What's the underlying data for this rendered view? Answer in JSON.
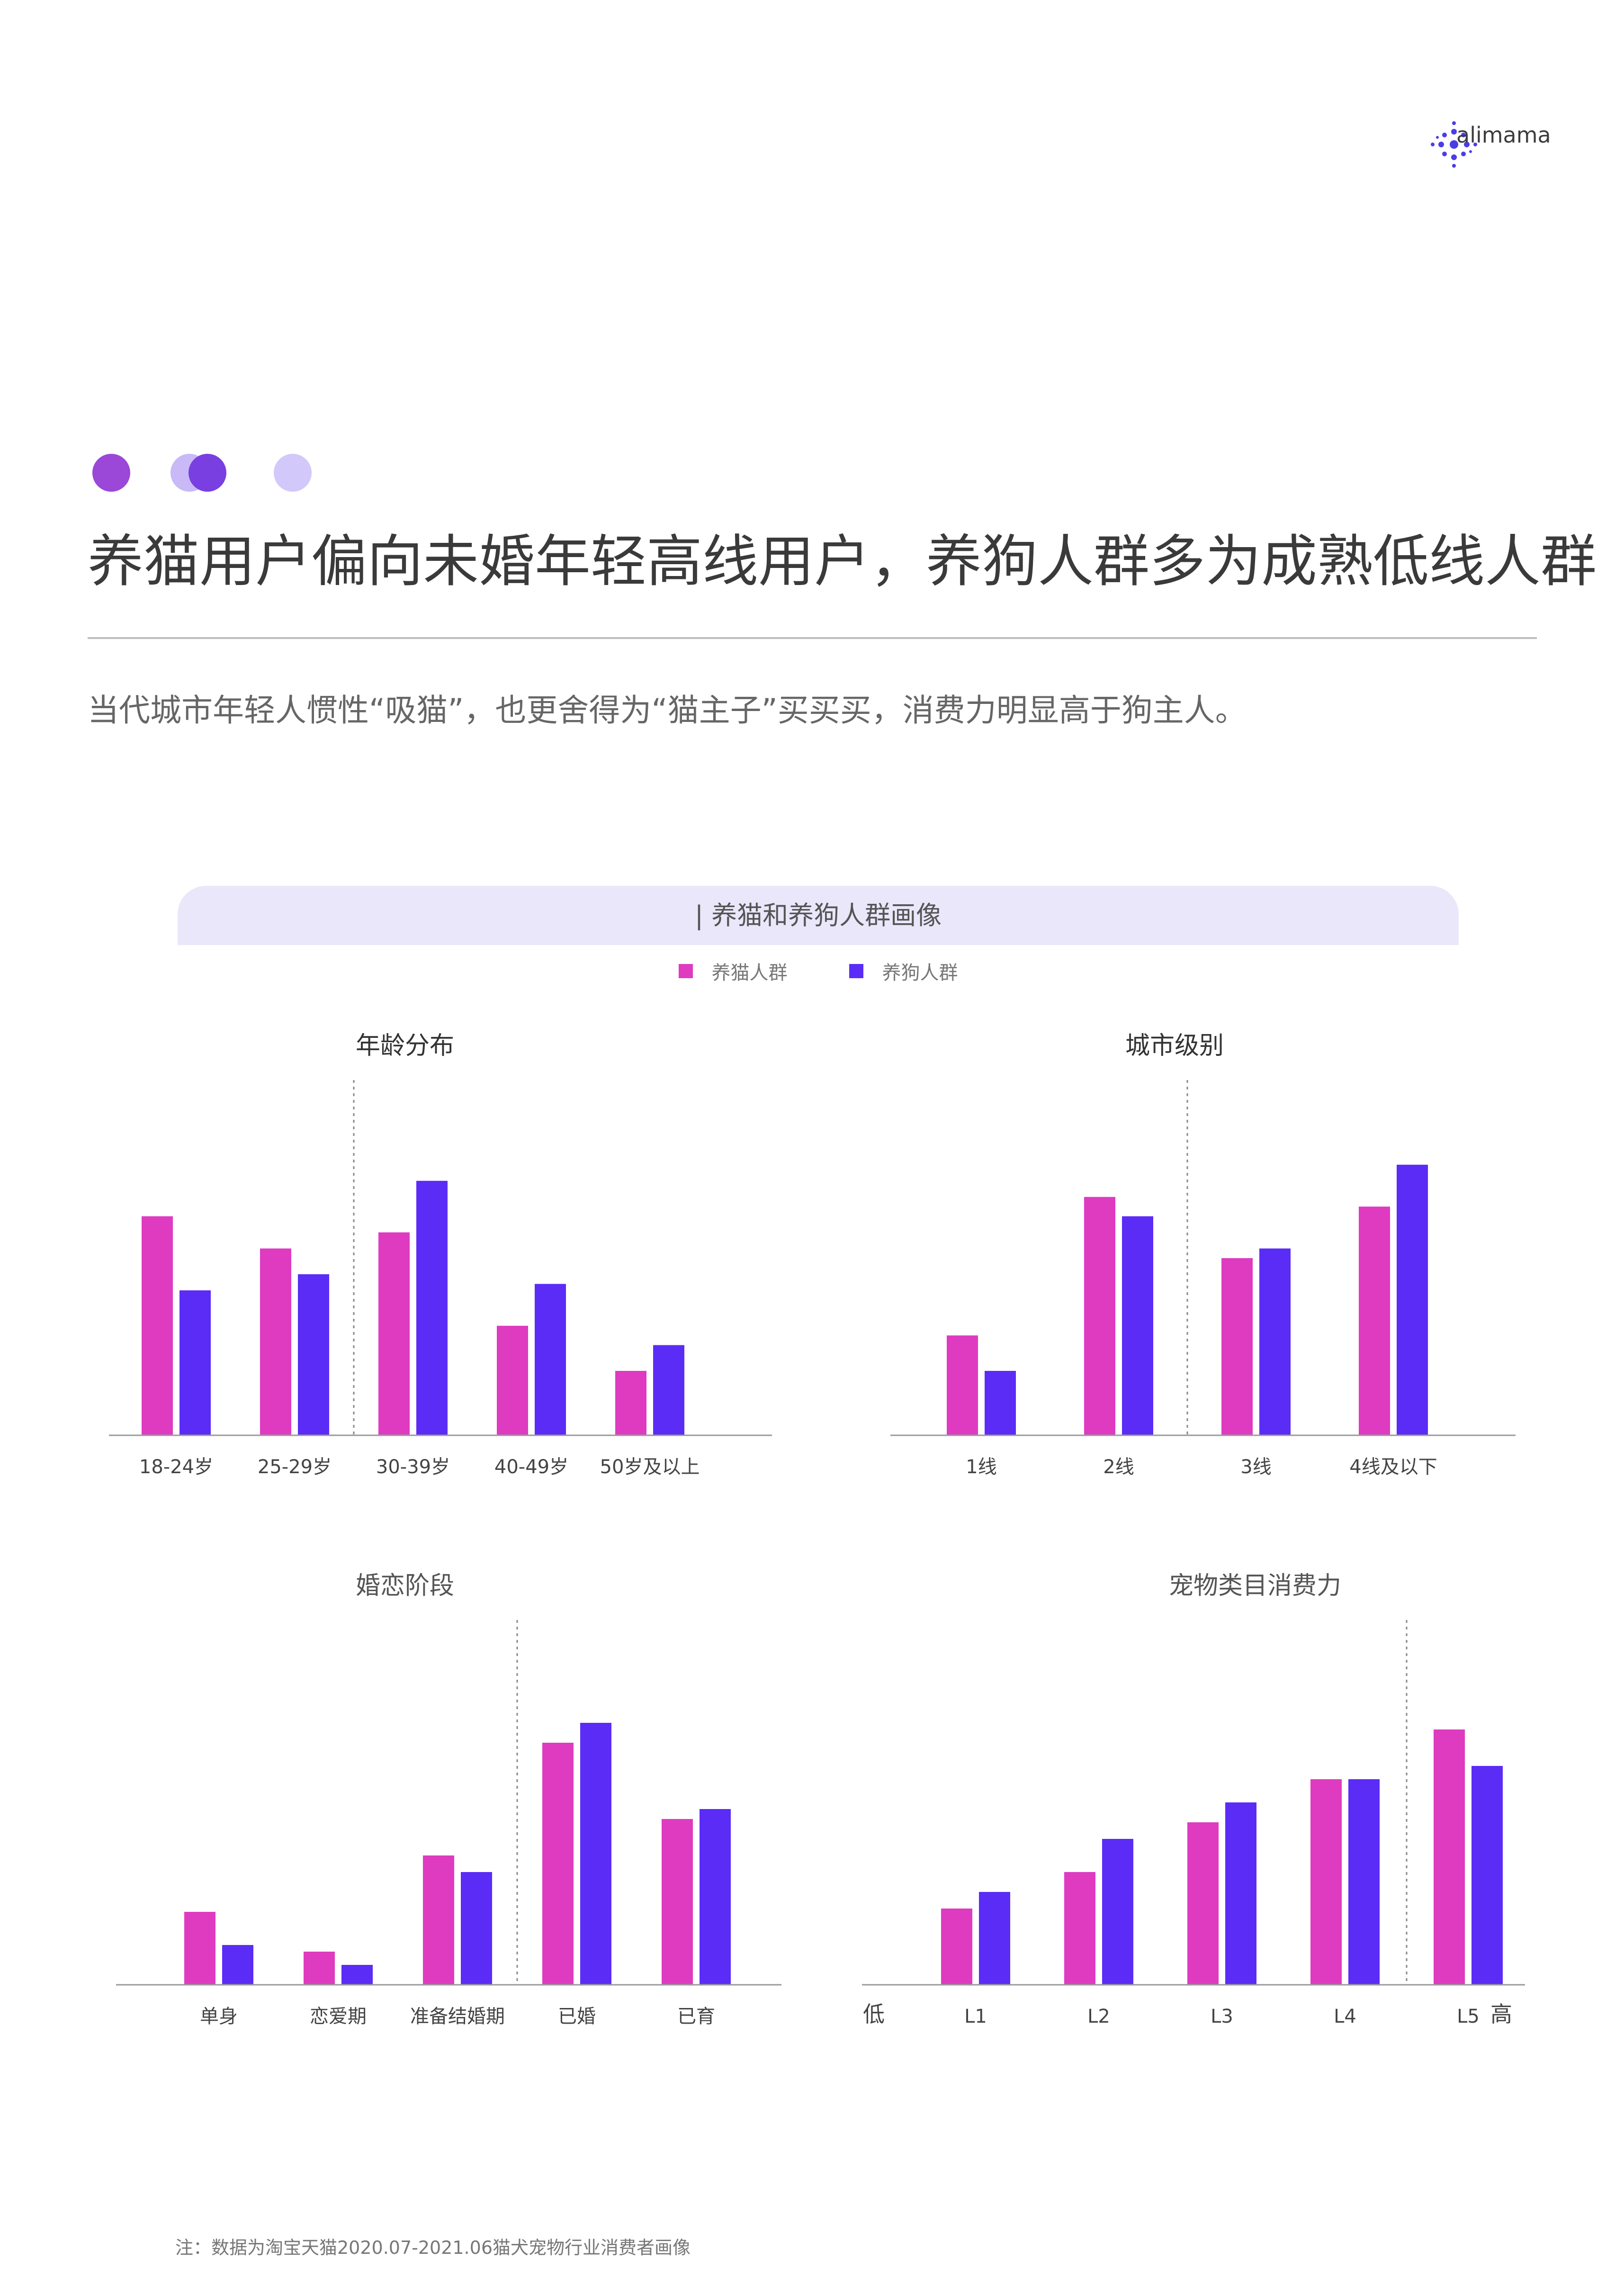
{
  "brand": {
    "name": "alimama",
    "logo_color": "#4a3de8"
  },
  "decor_dots": {
    "colors": [
      "#9b47d8",
      "#c9b9f7",
      "#7a3fe0",
      "#d3c8fa"
    ]
  },
  "header": {
    "title": "养猫用户偏向未婚年轻高线用户，养狗人群多为成熟低线人群",
    "subtitle": "当代城市年轻人惯性“吸猫”，也更舍得为“猫主子”买买买，消费力明显高于狗主人。"
  },
  "panel": {
    "title": "| 养猫和养狗人群画像"
  },
  "legend": [
    {
      "label": "养猫人群",
      "color": "#de3bc1"
    },
    {
      "label": "养狗人群",
      "color": "#5b2cf6"
    }
  ],
  "chart_data": [
    {
      "type": "bar",
      "title": "年龄分布",
      "categories": [
        "18-24岁",
        "25-29岁",
        "30-39岁",
        "40-49岁",
        "50岁及以上"
      ],
      "series": [
        {
          "name": "养猫人群",
          "values": [
            68,
            58,
            63,
            34,
            20
          ]
        },
        {
          "name": "养狗人群",
          "values": [
            45,
            50,
            79,
            47,
            28
          ]
        }
      ],
      "ylim": [
        0,
        100
      ],
      "divider_after": 1,
      "grid": false
    },
    {
      "type": "bar",
      "title": "城市级别",
      "categories": [
        "1线",
        "2线",
        "3线",
        "4线及以下"
      ],
      "series": [
        {
          "name": "养猫人群",
          "values": [
            31,
            74,
            55,
            71
          ]
        },
        {
          "name": "养狗人群",
          "values": [
            20,
            68,
            58,
            84
          ]
        }
      ],
      "ylim": [
        0,
        100
      ],
      "divider_after": 1,
      "grid": false
    },
    {
      "type": "bar",
      "title": "婚恋阶段",
      "categories": [
        "单身",
        "恋爱期",
        "准备结婚期",
        "已婚",
        "已育"
      ],
      "series": [
        {
          "name": "养猫人群",
          "values": [
            22,
            10,
            39,
            73,
            50
          ]
        },
        {
          "name": "养狗人群",
          "values": [
            12,
            6,
            34,
            79,
            53
          ]
        }
      ],
      "ylim": [
        0,
        100
      ],
      "divider_after": 2,
      "grid": false
    },
    {
      "type": "bar",
      "title": "宠物类目消费力",
      "categories": [
        "L1",
        "L2",
        "L3",
        "L4",
        "L5"
      ],
      "series": [
        {
          "name": "养猫人群",
          "values": [
            23,
            34,
            49,
            62,
            77
          ]
        },
        {
          "name": "养狗人群",
          "values": [
            28,
            44,
            55,
            62,
            66
          ]
        }
      ],
      "ylim": [
        0,
        100
      ],
      "divider_after": 3,
      "axis_low_label": "低",
      "axis_high_label": "高",
      "grid": false
    }
  ],
  "footnote": "注：数据为淘宝天猫2020.07-2021.06猫犬宠物行业消费者画像"
}
